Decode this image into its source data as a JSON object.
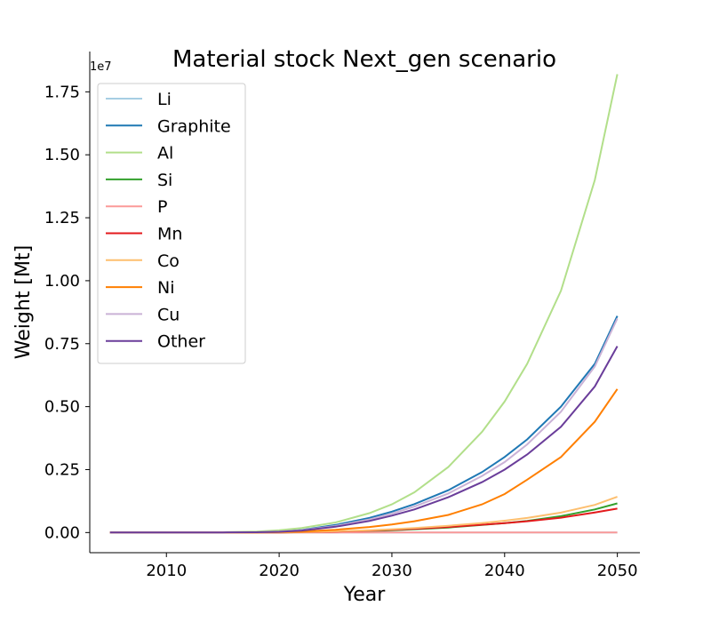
{
  "chart_data": {
    "type": "line",
    "title": "Material stock Next_gen scenario",
    "xlabel": "Year",
    "ylabel": "Weight [Mt]",
    "y_offset_text": "1e7",
    "xlim": [
      2003.2,
      2052.0
    ],
    "ylim": [
      -0.08,
      1.91
    ],
    "y_scale": 10000000,
    "x_ticks": [
      2010,
      2020,
      2030,
      2040,
      2050
    ],
    "y_ticks": [
      0.0,
      0.25,
      0.5,
      0.75,
      1.0,
      1.25,
      1.5,
      1.75
    ],
    "y_tick_labels": [
      "0.00",
      "0.25",
      "0.50",
      "0.75",
      "1.00",
      "1.25",
      "1.50",
      "1.75"
    ],
    "legend_position": "upper-left",
    "grid": false,
    "x": [
      2005,
      2010,
      2015,
      2018,
      2020,
      2022,
      2025,
      2028,
      2030,
      2032,
      2035,
      2038,
      2040,
      2042,
      2045,
      2048,
      2050
    ],
    "series": [
      {
        "name": "Li",
        "color": "#a6cee3",
        "values": [
          0,
          0,
          0,
          0,
          0,
          0,
          0,
          0,
          0,
          0,
          0,
          0,
          0,
          0,
          0,
          0,
          0
        ]
      },
      {
        "name": "Graphite",
        "color": "#1f78b4",
        "values": [
          0,
          0,
          0.0003,
          0.0015,
          0.004,
          0.01,
          0.03,
          0.058,
          0.083,
          0.113,
          0.168,
          0.24,
          0.3,
          0.37,
          0.5,
          0.67,
          0.86
        ]
      },
      {
        "name": "Al",
        "color": "#b2df8a",
        "values": [
          0,
          0,
          0.001,
          0.004,
          0.009,
          0.018,
          0.04,
          0.077,
          0.112,
          0.16,
          0.26,
          0.4,
          0.52,
          0.67,
          0.96,
          1.4,
          1.82
        ]
      },
      {
        "name": "Si",
        "color": "#33a02c",
        "values": [
          0,
          0,
          0,
          0,
          0.0003,
          0.001,
          0.003,
          0.006,
          0.009,
          0.013,
          0.02,
          0.03,
          0.037,
          0.046,
          0.065,
          0.092,
          0.116
        ]
      },
      {
        "name": "P",
        "color": "#fb9a99",
        "values": [
          0,
          0,
          0,
          0,
          0,
          0,
          0,
          0,
          0,
          0,
          0,
          0,
          0,
          0,
          0,
          0,
          0
        ]
      },
      {
        "name": "Mn",
        "color": "#e31a1c",
        "values": [
          0,
          0,
          0,
          0,
          0.0005,
          0.0015,
          0.004,
          0.008,
          0.011,
          0.015,
          0.022,
          0.031,
          0.037,
          0.045,
          0.059,
          0.08,
          0.095
        ]
      },
      {
        "name": "Co",
        "color": "#fdbf6f",
        "values": [
          0,
          0,
          0,
          0.0003,
          0.0008,
          0.002,
          0.005,
          0.009,
          0.013,
          0.018,
          0.027,
          0.038,
          0.047,
          0.058,
          0.079,
          0.11,
          0.142
        ]
      },
      {
        "name": "Ni",
        "color": "#ff7f00",
        "values": [
          0,
          0,
          0,
          0.0005,
          0.0015,
          0.004,
          0.011,
          0.022,
          0.032,
          0.045,
          0.07,
          0.112,
          0.153,
          0.21,
          0.3,
          0.44,
          0.57
        ]
      },
      {
        "name": "Cu",
        "color": "#cab2d6",
        "values": [
          0,
          0,
          0.0003,
          0.0013,
          0.0035,
          0.009,
          0.026,
          0.052,
          0.075,
          0.103,
          0.155,
          0.225,
          0.28,
          0.35,
          0.48,
          0.66,
          0.85
        ]
      },
      {
        "name": "Other",
        "color": "#6a3d9a",
        "values": [
          0,
          0,
          0.0003,
          0.0012,
          0.003,
          0.008,
          0.023,
          0.046,
          0.067,
          0.092,
          0.14,
          0.2,
          0.25,
          0.31,
          0.42,
          0.58,
          0.74
        ]
      }
    ]
  }
}
